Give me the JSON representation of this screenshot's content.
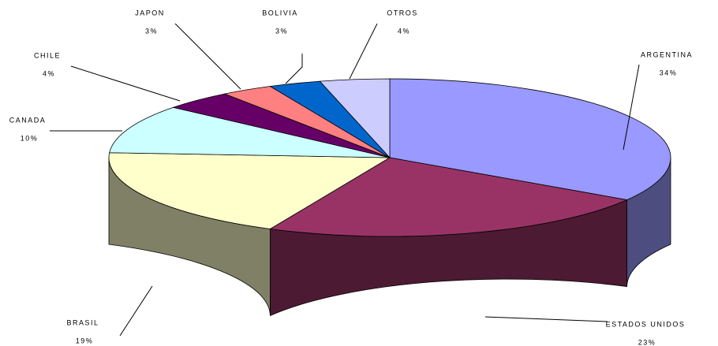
{
  "chart_data": {
    "type": "pie",
    "categories": [
      "ARGENTINA",
      "ESTADOS UNIDOS",
      "BRASIL",
      "CANADA",
      "CHILE",
      "JAPON",
      "BOLIVIA",
      "OTROS"
    ],
    "values": [
      34,
      23,
      19,
      10,
      4,
      3,
      3,
      4
    ],
    "value_labels": [
      "34%",
      "23%",
      "19%",
      "10%",
      "4%",
      "3%",
      "3%",
      "4%"
    ],
    "colors": [
      "#9999ff",
      "#993366",
      "#ffffcc",
      "#ccffff",
      "#660066",
      "#ff8080",
      "#0066cc",
      "#ccccff"
    ]
  }
}
